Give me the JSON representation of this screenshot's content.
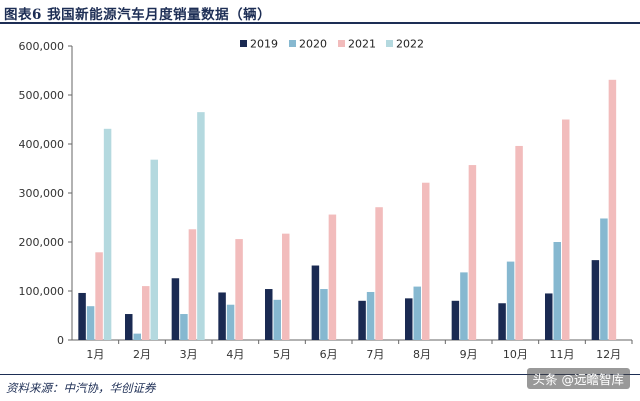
{
  "title": "图表6  我国新能源汽车月度销量数据（辆）",
  "source": "资料来源：中汽协，华创证券",
  "watermark": "头条 @远瞻智库",
  "colors": {
    "2019": "#1a2a52",
    "2020": "#86b8d0",
    "2021": "#f2bcbc",
    "2022": "#b4d9df",
    "header": "#1d2e55"
  },
  "chart_data": {
    "type": "bar",
    "title": "",
    "xlabel": "",
    "ylabel": "",
    "ylim": [
      0,
      600000
    ],
    "yticks": [
      "0",
      "100,000",
      "200,000",
      "300,000",
      "400,000",
      "500,000",
      "600,000"
    ],
    "ytick_values": [
      0,
      100000,
      200000,
      300000,
      400000,
      500000,
      600000
    ],
    "categories": [
      "1月",
      "2月",
      "3月",
      "4月",
      "5月",
      "6月",
      "7月",
      "8月",
      "9月",
      "10月",
      "11月",
      "12月"
    ],
    "legend_position": "top",
    "grid": false,
    "series": [
      {
        "name": "2019",
        "values": [
          96000,
          53000,
          126000,
          97000,
          104000,
          152000,
          80000,
          85000,
          80000,
          75000,
          95000,
          163000
        ]
      },
      {
        "name": "2020",
        "values": [
          69000,
          13000,
          53000,
          72000,
          82000,
          104000,
          98000,
          109000,
          138000,
          160000,
          200000,
          248000
        ]
      },
      {
        "name": "2021",
        "values": [
          179000,
          110000,
          226000,
          206000,
          217000,
          256000,
          271000,
          321000,
          357000,
          396000,
          450000,
          531000
        ]
      },
      {
        "name": "2022",
        "values": [
          431000,
          368000,
          465000,
          null,
          null,
          null,
          null,
          null,
          null,
          null,
          null,
          null
        ]
      }
    ]
  }
}
